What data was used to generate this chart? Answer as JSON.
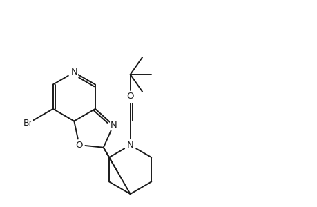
{
  "bg_color": "#ffffff",
  "lc": "#1a1a1a",
  "lw": 1.4,
  "fs": 9.5,
  "figsize": [
    4.6,
    3.0
  ],
  "dpi": 100,
  "xlim": [
    0,
    9.2
  ],
  "ylim": [
    0,
    6.0
  ]
}
